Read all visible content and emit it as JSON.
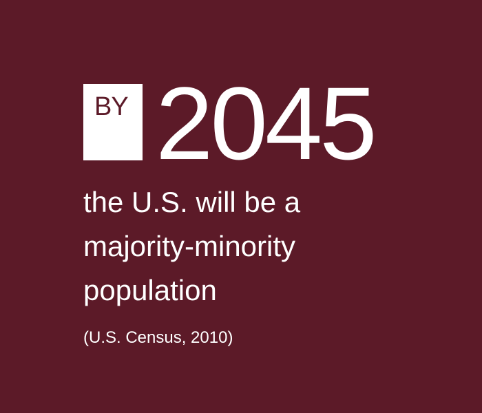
{
  "badge": {
    "label": "BY"
  },
  "headline": {
    "year": "2045"
  },
  "statement": {
    "lines": [
      "the U.S. will be a",
      "majority-minority",
      "population"
    ]
  },
  "citation": {
    "text": "(U.S. Census, 2010)"
  },
  "colors": {
    "background": "#5c1a28",
    "text": "#ffffff",
    "badge_background": "#ffffff",
    "badge_text": "#5c1a28"
  }
}
